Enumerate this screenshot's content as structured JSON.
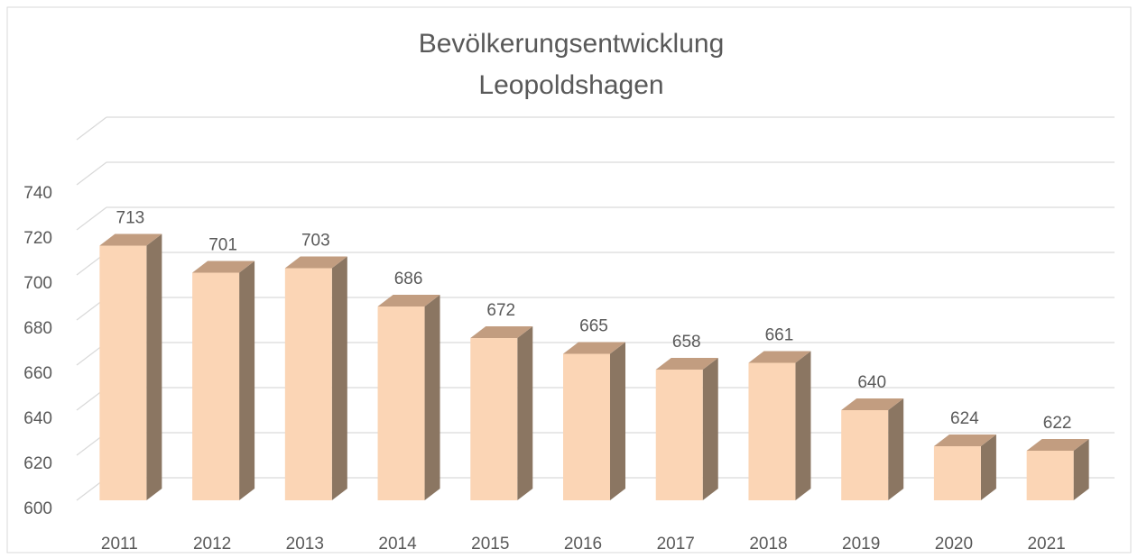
{
  "chart_data": {
    "type": "bar3d",
    "title": [
      "Bevölkerungsentwicklung",
      "Leopoldshagen"
    ],
    "categories": [
      "2011",
      "2012",
      "2013",
      "2014",
      "2015",
      "2016",
      "2017",
      "2018",
      "2019",
      "2020",
      "2021"
    ],
    "values": [
      713,
      701,
      703,
      686,
      672,
      665,
      658,
      661,
      640,
      624,
      622
    ],
    "color": "#fbd5b5",
    "ylim": [
      600,
      760
    ],
    "yticks": [
      600,
      620,
      640,
      660,
      680,
      700,
      720,
      740
    ],
    "grid": true
  }
}
